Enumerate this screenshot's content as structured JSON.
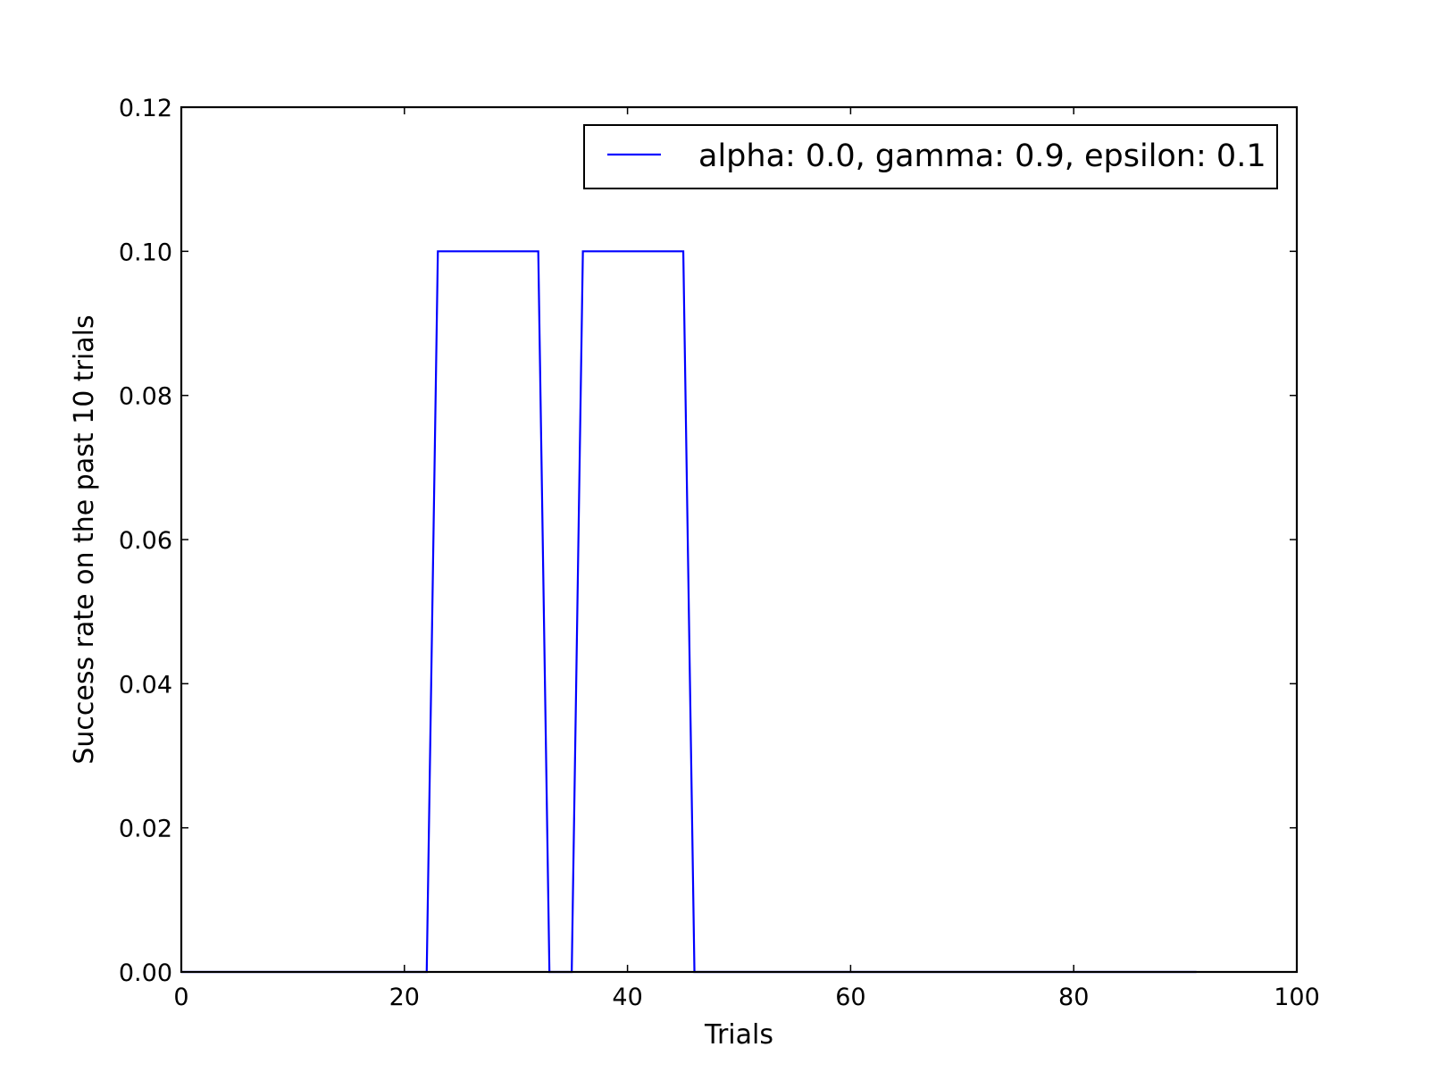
{
  "chart_data": {
    "type": "line",
    "xlabel": "Trials",
    "ylabel": "Success rate on the past 10 trials",
    "xlim": [
      0,
      100
    ],
    "ylim": [
      0,
      0.12
    ],
    "xticks": [
      0,
      20,
      40,
      60,
      80,
      100
    ],
    "xtick_labels": [
      "0",
      "20",
      "40",
      "60",
      "80",
      "100"
    ],
    "yticks": [
      0,
      0.02,
      0.04,
      0.06,
      0.08,
      0.1,
      0.12
    ],
    "ytick_labels": [
      "0.00",
      "0.02",
      "0.04",
      "0.06",
      "0.08",
      "0.10",
      "0.12"
    ],
    "grid": false,
    "legend_position": "top-right",
    "series": [
      {
        "name": "alpha: 0.0, gamma: 0.9, epsilon: 0.1",
        "color": "#0000ff",
        "x": [
          0,
          22,
          23,
          32,
          33,
          35,
          36,
          45,
          46,
          91
        ],
        "y": [
          0,
          0,
          0.1,
          0.1,
          0,
          0,
          0.1,
          0.1,
          0,
          0
        ]
      }
    ]
  }
}
